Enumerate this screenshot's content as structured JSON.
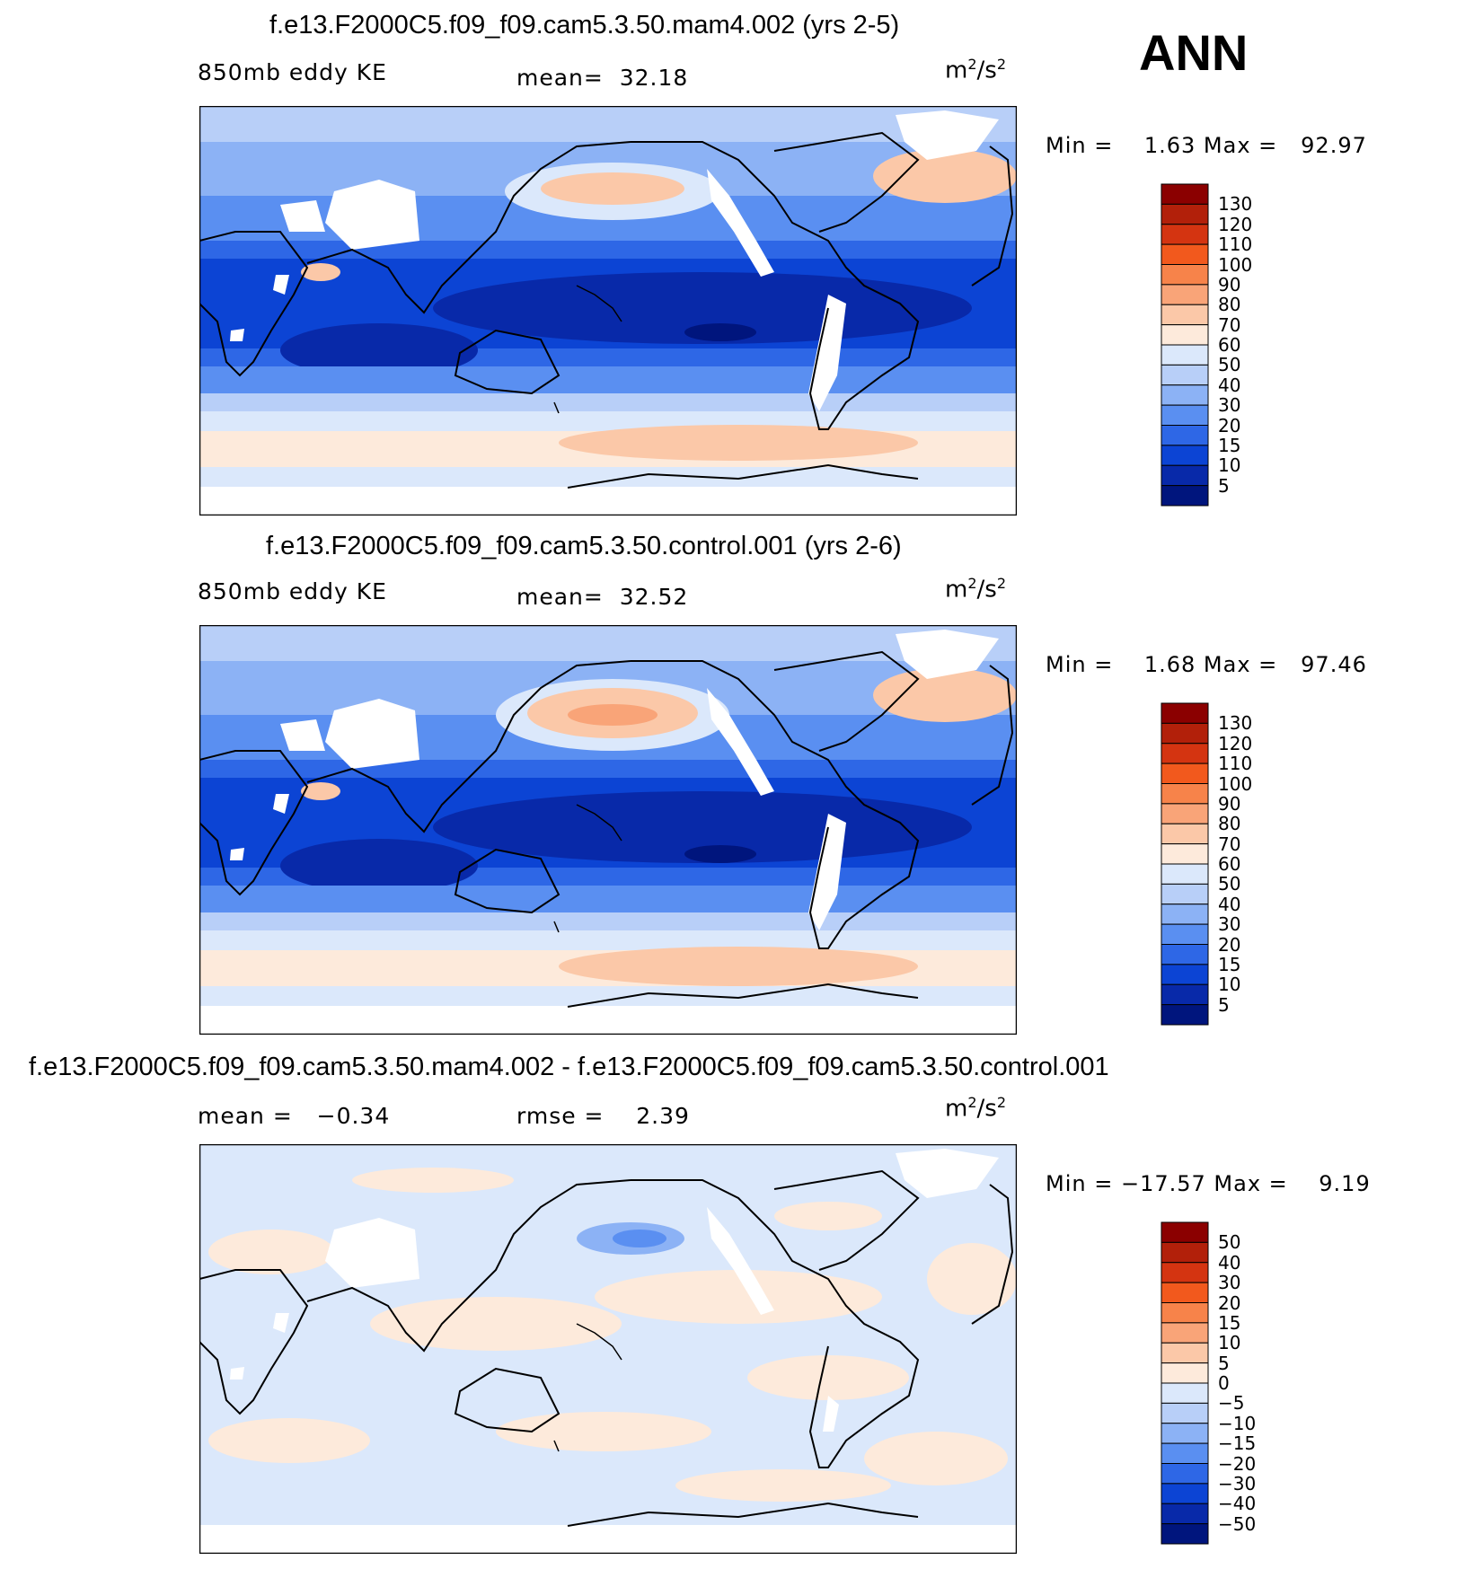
{
  "season_label": "ANN",
  "panels": [
    {
      "title": "f.e13.F2000C5.f09_f09.cam5.3.50.mam4.002 (yrs 2-5)",
      "left_label": "850mb eddy KE",
      "center_label": "mean=  32.18",
      "units": "m",
      "units_exp": "2",
      "units_tail": "/s",
      "units_exp2": "2",
      "minmax": "Min =    1.63 Max =   92.97",
      "colorbar": {
        "levels": [
          "130",
          "120",
          "110",
          "100",
          "90",
          "80",
          "70",
          "60",
          "50",
          "40",
          "30",
          "20",
          "15",
          "10",
          "5"
        ],
        "colors": [
          "#8b0000",
          "#b2200a",
          "#d43411",
          "#f2591d",
          "#f7834a",
          "#f9a478",
          "#fbc8a8",
          "#fdeadb",
          "#dbe8fb",
          "#b8cff8",
          "#8cb2f5",
          "#5a8ff1",
          "#2e67e6",
          "#0c44d4",
          "#0829a9",
          "#00157d"
        ]
      },
      "stats": {
        "min": 1.63,
        "max": 92.97,
        "mean": 32.18
      }
    },
    {
      "title": "f.e13.F2000C5.f09_f09.cam5.3.50.control.001 (yrs 2-6)",
      "left_label": "850mb eddy KE",
      "center_label": "mean=  32.52",
      "units": "m",
      "units_exp": "2",
      "units_tail": "/s",
      "units_exp2": "2",
      "minmax": "Min =    1.68 Max =   97.46",
      "colorbar": {
        "levels": [
          "130",
          "120",
          "110",
          "100",
          "90",
          "80",
          "70",
          "60",
          "50",
          "40",
          "30",
          "20",
          "15",
          "10",
          "5"
        ],
        "colors": [
          "#8b0000",
          "#b2200a",
          "#d43411",
          "#f2591d",
          "#f7834a",
          "#f9a478",
          "#fbc8a8",
          "#fdeadb",
          "#dbe8fb",
          "#b8cff8",
          "#8cb2f5",
          "#5a8ff1",
          "#2e67e6",
          "#0c44d4",
          "#0829a9",
          "#00157d"
        ]
      },
      "stats": {
        "min": 1.68,
        "max": 97.46,
        "mean": 32.52
      }
    },
    {
      "title": "f.e13.F2000C5.f09_f09.cam5.3.50.mam4.002 - f.e13.F2000C5.f09_f09.cam5.3.50.control.001",
      "left_label": "mean =   −0.34",
      "center_label": "rmse =    2.39",
      "units": "m",
      "units_exp": "2",
      "units_tail": "/s",
      "units_exp2": "2",
      "minmax": "Min = −17.57 Max =    9.19",
      "colorbar": {
        "levels": [
          "50",
          "40",
          "30",
          "20",
          "15",
          "10",
          "5",
          "0",
          "−5",
          "−10",
          "−15",
          "−20",
          "−30",
          "−40",
          "−50"
        ],
        "colors": [
          "#8b0000",
          "#b2200a",
          "#d43411",
          "#f2591d",
          "#f7834a",
          "#f9a478",
          "#fbc8a8",
          "#fdeadb",
          "#dbe8fb",
          "#b8cff8",
          "#8cb2f5",
          "#5a8ff1",
          "#2e67e6",
          "#0c44d4",
          "#0829a9",
          "#00157d"
        ]
      },
      "stats": {
        "min": -17.57,
        "max": 9.19,
        "mean": -0.34,
        "rmse": 2.39
      }
    }
  ]
}
